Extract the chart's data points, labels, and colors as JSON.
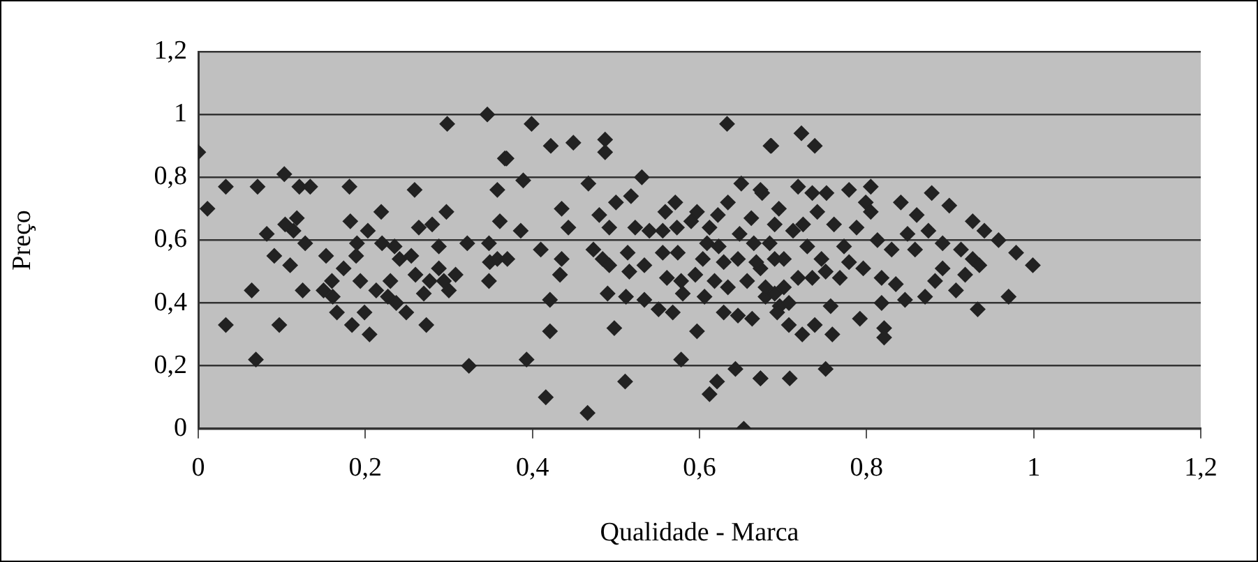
{
  "chart_data": {
    "type": "scatter",
    "xlabel": "Qualidade - Marca",
    "ylabel": "Preço",
    "xlim": [
      0,
      1.2
    ],
    "ylim": [
      0,
      1.2
    ],
    "xticks": [
      0,
      {
        "value": 0.2,
        "label": "0,2"
      },
      {
        "value": 0.4,
        "label": "0,4"
      },
      {
        "value": 0.6,
        "label": "0,6"
      },
      {
        "value": 0.8,
        "label": "0,8"
      },
      1,
      {
        "value": 1.2,
        "label": "1,2"
      }
    ],
    "yticks": [
      0,
      {
        "value": 0.2,
        "label": "0,2"
      },
      {
        "value": 0.4,
        "label": "0,4"
      },
      {
        "value": 0.6,
        "label": "0,6"
      },
      {
        "value": 0.8,
        "label": "0,8"
      },
      1,
      {
        "value": 1.2,
        "label": "1,2"
      }
    ],
    "grid": "y",
    "legend": false,
    "marker": "diamond",
    "series": [
      {
        "color": "#222222",
        "x": [
          0,
          0.011,
          0.033,
          0.033,
          0.064,
          0.069,
          0.071,
          0.082,
          0.091,
          0.097,
          0.103,
          0.104,
          0.11,
          0.114,
          0.118,
          0.121,
          0.125,
          0.128,
          0.134,
          0.153,
          0.15,
          0.16,
          0.161,
          0.166,
          0.174,
          0.181,
          0.182,
          0.19,
          0.189,
          0.194,
          0.184,
          0.199,
          0.205,
          0.203,
          0.219,
          0.213,
          0.22,
          0.227,
          0.23,
          0.235,
          0.237,
          0.241,
          0.249,
          0.255,
          0.259,
          0.264,
          0.26,
          0.27,
          0.273,
          0.28,
          0.277,
          0.288,
          0.288,
          0.294,
          0.298,
          0.297,
          0.3,
          0.308,
          0.324,
          0.322,
          0.346,
          0.348,
          0.348,
          0.349,
          0.358,
          0.358,
          0.361,
          0.367,
          0.399,
          0.369,
          0.422,
          0.449,
          0.487,
          0.487,
          0.633,
          0.685,
          0.389,
          0.467,
          0.531,
          0.435,
          0.386,
          0.443,
          0.48,
          0.5,
          0.492,
          0.518,
          0.41,
          0.435,
          0.433,
          0.37,
          0.473,
          0.484,
          0.492,
          0.421,
          0.421,
          0.393,
          0.416,
          0.466,
          0.498,
          0.511,
          0.49,
          0.512,
          0.516,
          0.534,
          0.514,
          0.523,
          0.54,
          0.556,
          0.573,
          0.59,
          0.559,
          0.571,
          0.597,
          0.622,
          0.634,
          0.65,
          0.675,
          0.534,
          0.551,
          0.568,
          0.561,
          0.556,
          0.574,
          0.578,
          0.597,
          0.578,
          0.58,
          0.595,
          0.604,
          0.606,
          0.609,
          0.612,
          0.623,
          0.629,
          0.618,
          0.629,
          0.646,
          0.663,
          0.634,
          0.646,
          0.648,
          0.662,
          0.665,
          0.657,
          0.673,
          0.679,
          0.69,
          0.69,
          0.643,
          0.621,
          0.612,
          0.673,
          0.653,
          0.696,
          0.686,
          0.722,
          0.738,
          0.673,
          0.695,
          0.718,
          0.735,
          0.752,
          0.779,
          0.805,
          0.799,
          0.805,
          0.741,
          0.761,
          0.788,
          0.712,
          0.724,
          0.684,
          0.701,
          0.729,
          0.746,
          0.773,
          0.813,
          0.841,
          0.878,
          0.899,
          0.86,
          0.849,
          0.874,
          0.83,
          0.858,
          0.891,
          0.927,
          0.941,
          0.958,
          0.979,
          0.999,
          0.913,
          0.927,
          0.935,
          0.891,
          0.882,
          0.907,
          0.918,
          0.87,
          0.846,
          0.835,
          0.818,
          0.796,
          0.779,
          0.768,
          0.751,
          0.735,
          0.718,
          0.701,
          0.679,
          0.668,
          0.69,
          0.707,
          0.757,
          0.818,
          0.933,
          0.97,
          0.693,
          0.707,
          0.723,
          0.738,
          0.759,
          0.792,
          0.821,
          0.821,
          0.751,
          0.673,
          0.708
        ],
        "values": [
          0.88,
          0.7,
          0.77,
          0.33,
          0.44,
          0.22,
          0.77,
          0.62,
          0.55,
          0.33,
          0.81,
          0.65,
          0.52,
          0.63,
          0.67,
          0.77,
          0.44,
          0.59,
          0.77,
          0.55,
          0.44,
          0.47,
          0.42,
          0.37,
          0.51,
          0.77,
          0.66,
          0.59,
          0.55,
          0.47,
          0.33,
          0.37,
          0.3,
          0.63,
          0.69,
          0.44,
          0.59,
          0.42,
          0.47,
          0.58,
          0.4,
          0.54,
          0.37,
          0.55,
          0.76,
          0.64,
          0.49,
          0.43,
          0.33,
          0.65,
          0.47,
          0.58,
          0.51,
          0.47,
          0.97,
          0.69,
          0.44,
          0.49,
          0.2,
          0.59,
          1,
          0.47,
          0.59,
          0.53,
          0.54,
          0.76,
          0.66,
          0.86,
          0.97,
          0.86,
          0.9,
          0.91,
          0.92,
          0.88,
          0.97,
          0.9,
          0.79,
          0.78,
          0.8,
          0.7,
          0.63,
          0.64,
          0.68,
          0.72,
          0.64,
          0.74,
          0.57,
          0.54,
          0.49,
          0.54,
          0.57,
          0.54,
          0.52,
          0.41,
          0.31,
          0.22,
          0.1,
          0.05,
          0.32,
          0.15,
          0.43,
          0.42,
          0.5,
          0.52,
          0.56,
          0.64,
          0.63,
          0.63,
          0.64,
          0.66,
          0.69,
          0.72,
          0.69,
          0.68,
          0.72,
          0.78,
          0.75,
          0.41,
          0.38,
          0.37,
          0.48,
          0.56,
          0.56,
          0.47,
          0.31,
          0.22,
          0.43,
          0.49,
          0.54,
          0.42,
          0.59,
          0.64,
          0.58,
          0.53,
          0.47,
          0.37,
          0.36,
          0.35,
          0.45,
          0.54,
          0.62,
          0.67,
          0.59,
          0.47,
          0.51,
          0.42,
          0.54,
          0.65,
          0.19,
          0.15,
          0.11,
          0.16,
          0,
          0.39,
          0.9,
          0.94,
          0.9,
          0.76,
          0.7,
          0.77,
          0.75,
          0.75,
          0.76,
          0.77,
          0.72,
          0.69,
          0.69,
          0.65,
          0.64,
          0.63,
          0.65,
          0.59,
          0.54,
          0.58,
          0.54,
          0.58,
          0.6,
          0.72,
          0.75,
          0.71,
          0.68,
          0.62,
          0.63,
          0.57,
          0.57,
          0.59,
          0.66,
          0.63,
          0.6,
          0.56,
          0.52,
          0.57,
          0.54,
          0.52,
          0.51,
          0.47,
          0.44,
          0.49,
          0.42,
          0.41,
          0.46,
          0.48,
          0.51,
          0.53,
          0.48,
          0.5,
          0.48,
          0.48,
          0.45,
          0.45,
          0.53,
          0.43,
          0.4,
          0.39,
          0.4,
          0.38,
          0.42,
          0.37,
          0.33,
          0.3,
          0.33,
          0.3,
          0.35,
          0.32,
          0.29,
          0.19,
          0.16,
          0.16
        ]
      }
    ]
  }
}
